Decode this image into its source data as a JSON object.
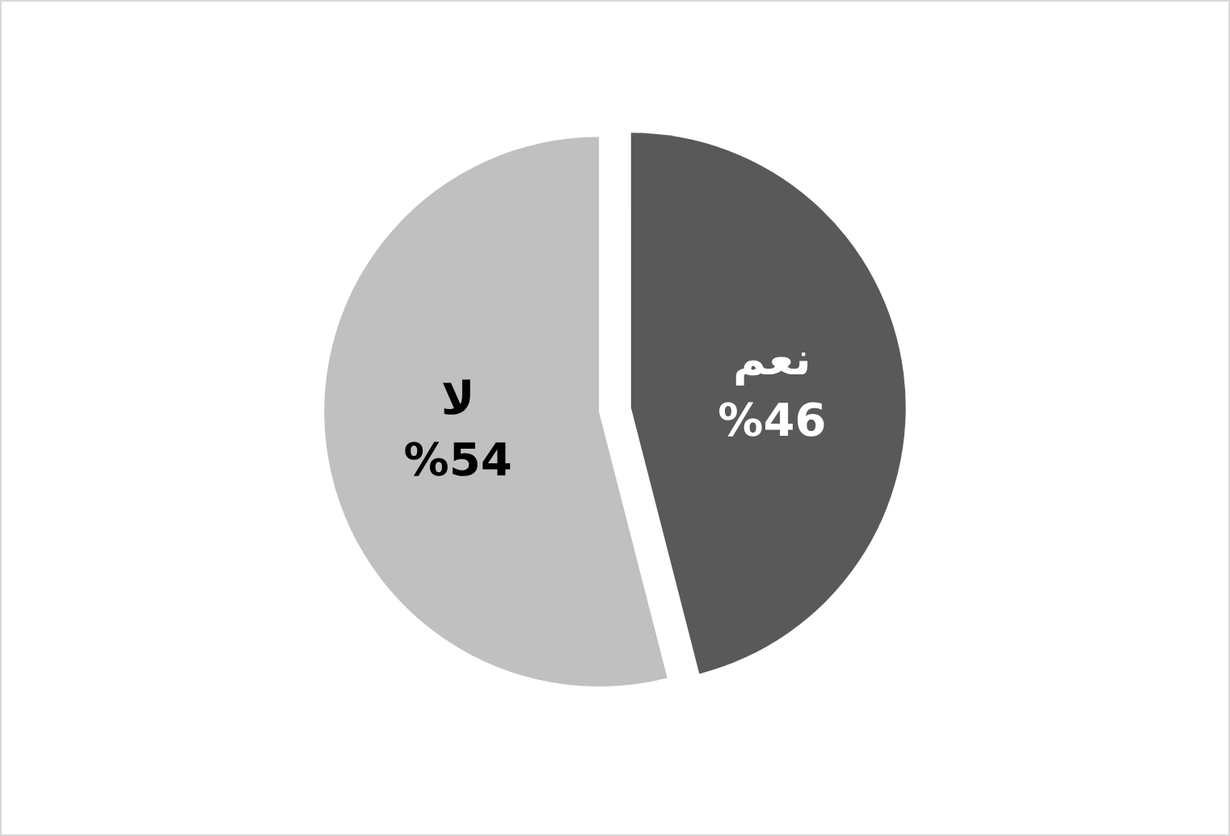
{
  "chart_data": {
    "type": "pie",
    "categories": [
      "نعم",
      "لا"
    ],
    "values": [
      46,
      54
    ],
    "colors": [
      "#595959",
      "#c0c0c0"
    ],
    "value_labels": [
      "%46",
      "%54"
    ],
    "legend": false
  }
}
